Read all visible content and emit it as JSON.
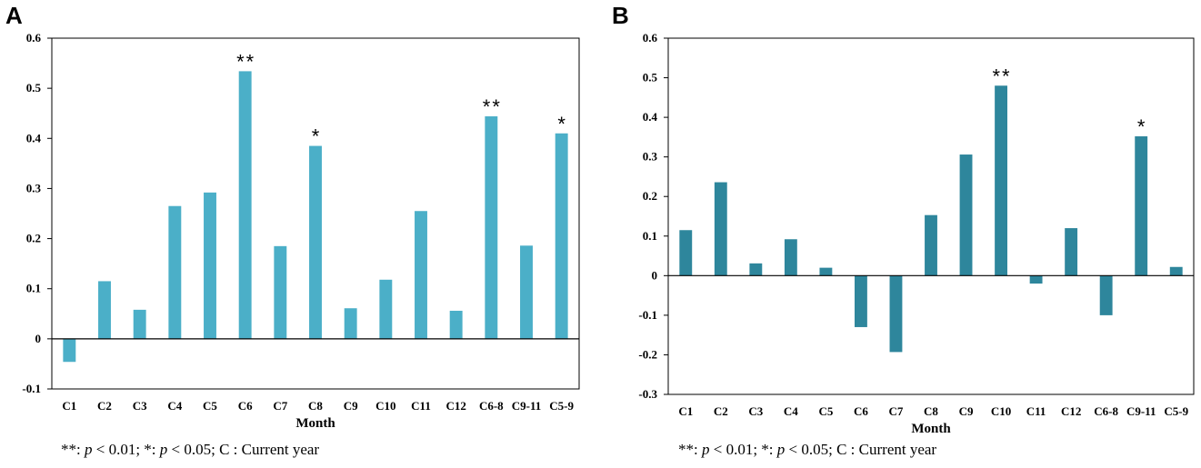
{
  "panels": [
    {
      "letter": "A",
      "color": "#4bafc8",
      "footnote": {
        "p1_prefix": "**: ",
        "p1_var": "p",
        "p1_rest": " < 0.01;  *: ",
        "p2_var": "p",
        "p2_rest": " < 0.05;  C : Current year"
      }
    },
    {
      "letter": "B",
      "color": "#2e869c",
      "footnote": {
        "p1_prefix": "**: ",
        "p1_var": "p",
        "p1_rest": " < 0.01;  *: ",
        "p2_var": "p",
        "p2_rest": " < 0.05;  C : Current year"
      }
    }
  ],
  "chart_data": [
    {
      "type": "bar",
      "title": "A",
      "xlabel": "Month",
      "ylabel": "",
      "ylim": [
        -0.1,
        0.6
      ],
      "yticks": [
        -0.1,
        0,
        0.1,
        0.2,
        0.3,
        0.4,
        0.5,
        0.6
      ],
      "ytick_labels": [
        "-0.1",
        "0",
        "0.1",
        "0.2",
        "0.3",
        "0.4",
        "0.5",
        "0.6"
      ],
      "categories": [
        "C1",
        "C2",
        "C3",
        "C4",
        "C5",
        "C6",
        "C7",
        "C8",
        "C9",
        "C10",
        "C11",
        "C12",
        "C6-8",
        "C9-11",
        "C5-9"
      ],
      "values": [
        -0.046,
        0.115,
        0.058,
        0.265,
        0.292,
        0.534,
        0.185,
        0.385,
        0.061,
        0.118,
        0.255,
        0.056,
        0.444,
        0.186,
        0.41
      ],
      "significance": [
        "",
        "",
        "",
        "",
        "",
        "**",
        "",
        "*",
        "",
        "",
        "",
        "",
        "**",
        "",
        "*"
      ]
    },
    {
      "type": "bar",
      "title": "B",
      "xlabel": "Month",
      "ylabel": "",
      "ylim": [
        -0.3,
        0.6
      ],
      "yticks": [
        -0.3,
        -0.2,
        -0.1,
        0,
        0.1,
        0.2,
        0.3,
        0.4,
        0.5,
        0.6
      ],
      "ytick_labels": [
        "-0.3",
        "-0.2",
        "-0.1",
        "0",
        "0.1",
        "0.2",
        "0.3",
        "0.4",
        "0.5",
        "0.6"
      ],
      "categories": [
        "C1",
        "C2",
        "C3",
        "C4",
        "C5",
        "C6",
        "C7",
        "C8",
        "C9",
        "C10",
        "C11",
        "C12",
        "C6-8",
        "C9-11",
        "C5-9"
      ],
      "values": [
        0.115,
        0.236,
        0.031,
        0.092,
        0.02,
        -0.13,
        -0.193,
        0.153,
        0.306,
        0.48,
        -0.02,
        0.12,
        -0.1,
        0.352,
        0.022
      ],
      "significance": [
        "",
        "",
        "",
        "",
        "",
        "",
        "",
        "",
        "",
        "**",
        "",
        "",
        "",
        "*",
        ""
      ]
    }
  ]
}
